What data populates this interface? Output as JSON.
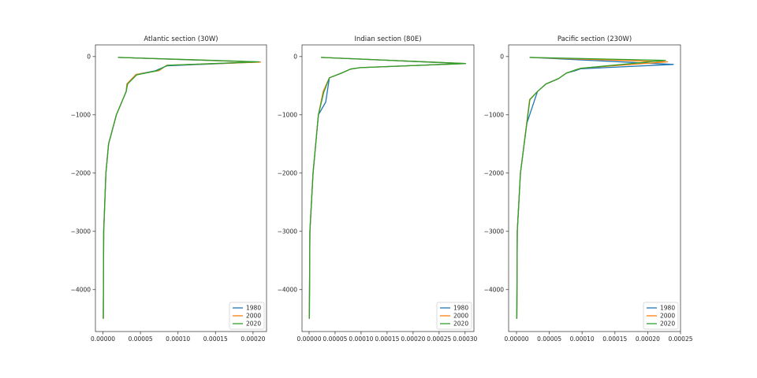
{
  "chart_data": [
    {
      "type": "line",
      "title": "Atlantic section (30W)",
      "xlabel": "",
      "ylabel": "",
      "xlim": [
        -1e-05,
        0.000218
      ],
      "ylim": [
        -4720,
        200
      ],
      "xticks": [
        0,
        5e-05,
        0.0001,
        0.00015,
        0.0002
      ],
      "xtick_labels": [
        "0.00000",
        "0.00005",
        "0.00010",
        "0.00015",
        "0.00020"
      ],
      "yticks": [
        0,
        -1000,
        -2000,
        -3000,
        -4000
      ],
      "ytick_labels": [
        "0",
        "−1000",
        "−2000",
        "−3000",
        "−4000"
      ],
      "grid": false,
      "legend": "lower right",
      "series": [
        {
          "name": "1980",
          "color": "#1f77b4",
          "x": [
            2e-05,
            0.000205,
            8.5e-05,
            7e-05,
            4.4e-05,
            3.2e-05,
            3.1e-05,
            1.8e-05,
            7.5e-06,
            4e-06,
            1e-06,
            5e-07
          ],
          "y": [
            -15,
            -95,
            -160,
            -245,
            -310,
            -470,
            -600,
            -1000,
            -1500,
            -2000,
            -3000,
            -4500
          ]
        },
        {
          "name": "2000",
          "color": "#ff7f0e",
          "x": [
            2e-05,
            0.00021,
            8.5e-05,
            7.5e-05,
            4.4e-05,
            3.2e-05,
            3.1e-05,
            1.8e-05,
            7.5e-06,
            4e-06,
            1e-06,
            5e-07
          ],
          "y": [
            -15,
            -95,
            -150,
            -240,
            -310,
            -470,
            -600,
            -1000,
            -1500,
            -2000,
            -3000,
            -4500
          ]
        },
        {
          "name": "2020",
          "color": "#2ca02c",
          "x": [
            2e-05,
            0.000208,
            8.6e-05,
            7.2e-05,
            4.5e-05,
            3.3e-05,
            3.1e-05,
            1.8e-05,
            7.5e-06,
            4e-06,
            1e-06,
            5e-07
          ],
          "y": [
            -15,
            -90,
            -150,
            -245,
            -315,
            -470,
            -600,
            -1000,
            -1500,
            -2000,
            -3000,
            -4500
          ]
        }
      ]
    },
    {
      "type": "line",
      "title": "Indian section (80E)",
      "xlabel": "",
      "ylabel": "",
      "xlim": [
        -1.36e-05,
        0.000317
      ],
      "ylim": [
        -4720,
        200
      ],
      "xticks": [
        0,
        5e-05,
        0.0001,
        0.00015,
        0.0002,
        0.00025,
        0.0003
      ],
      "xtick_labels": [
        "0.00000",
        "0.00005",
        "0.00010",
        "0.00015",
        "0.00020",
        "0.00025",
        "0.00030"
      ],
      "yticks": [
        0,
        -1000,
        -2000,
        -3000,
        -4000
      ],
      "ytick_labels": [
        "0",
        "−1000",
        "−2000",
        "−3000",
        "−4000"
      ],
      "grid": false,
      "legend": "lower right",
      "series": [
        {
          "name": "1980",
          "color": "#1f77b4",
          "x": [
            2.3e-05,
            0.000295,
            9.85e-05,
            8e-05,
            6.2e-05,
            3.9e-05,
            3.2e-05,
            1.8e-05,
            7.6e-06,
            1.5e-06,
            5e-07
          ],
          "y": [
            -15,
            -120,
            -190,
            -215,
            -285,
            -365,
            -780,
            -1000,
            -2000,
            -3000,
            -4500
          ]
        },
        {
          "name": "2000",
          "color": "#ff7f0e",
          "x": [
            2.3e-05,
            0.0003,
            9.85e-05,
            8e-05,
            6.2e-05,
            3.9e-05,
            2.7e-05,
            1.8e-05,
            7.6e-06,
            1.5e-06,
            5e-07
          ],
          "y": [
            -15,
            -120,
            -190,
            -215,
            -285,
            -365,
            -600,
            -1000,
            -2000,
            -3000,
            -4500
          ]
        },
        {
          "name": "2020",
          "color": "#2ca02c",
          "x": [
            2.3e-05,
            0.000301,
            9.85e-05,
            8e-05,
            6.2e-05,
            3.9e-05,
            2.8e-05,
            1.8e-05,
            7.6e-06,
            1.5e-06,
            5e-07
          ],
          "y": [
            -15,
            -120,
            -190,
            -215,
            -285,
            -365,
            -620,
            -1000,
            -2000,
            -3000,
            -4500
          ]
        }
      ]
    },
    {
      "type": "line",
      "title": "Pacific section (230W)",
      "xlabel": "",
      "ylabel": "",
      "xlim": [
        -1.2e-05,
        0.00025
      ],
      "ylim": [
        -4720,
        200
      ],
      "xticks": [
        0,
        5e-05,
        0.0001,
        0.00015,
        0.0002,
        0.00025
      ],
      "xtick_labels": [
        "0.00000",
        "0.00005",
        "0.00010",
        "0.00015",
        "0.00020",
        "0.00025"
      ],
      "yticks": [
        0,
        -1000,
        -2000,
        -3000,
        -4000
      ],
      "ytick_labels": [
        "0",
        "−1000",
        "−2000",
        "−3000",
        "−4000"
      ],
      "grid": false,
      "legend": "lower right",
      "series": [
        {
          "name": "1980",
          "color": "#1f77b4",
          "x": [
            2e-05,
            0.000239,
            9.8e-05,
            9e-05,
            7.6e-05,
            6.4e-05,
            4.5e-05,
            3.2e-05,
            1.57e-05,
            6e-06,
            1.2e-06,
            5e-07
          ],
          "y": [
            -15,
            -135,
            -210,
            -240,
            -285,
            -380,
            -470,
            -600,
            -1150,
            -2000,
            -3000,
            -4500
          ]
        },
        {
          "name": "2000",
          "color": "#ff7f0e",
          "x": [
            2e-05,
            0.00023,
            9.8e-05,
            9e-05,
            7.6e-05,
            6.4e-05,
            4.5e-05,
            3.2e-05,
            2e-05,
            6e-06,
            1.2e-06,
            5e-07
          ],
          "y": [
            -15,
            -90,
            -200,
            -230,
            -285,
            -380,
            -470,
            -600,
            -740,
            -2000,
            -3000,
            -4500
          ]
        },
        {
          "name": "2020",
          "color": "#2ca02c",
          "x": [
            2e-05,
            0.000227,
            9.9e-05,
            9e-05,
            7.6e-05,
            6.4e-05,
            4.5e-05,
            3.2e-05,
            2.05e-05,
            6e-06,
            1.2e-06,
            5e-07
          ],
          "y": [
            -15,
            -65,
            -200,
            -230,
            -285,
            -380,
            -470,
            -600,
            -740,
            -2000,
            -3000,
            -4500
          ]
        }
      ]
    }
  ]
}
